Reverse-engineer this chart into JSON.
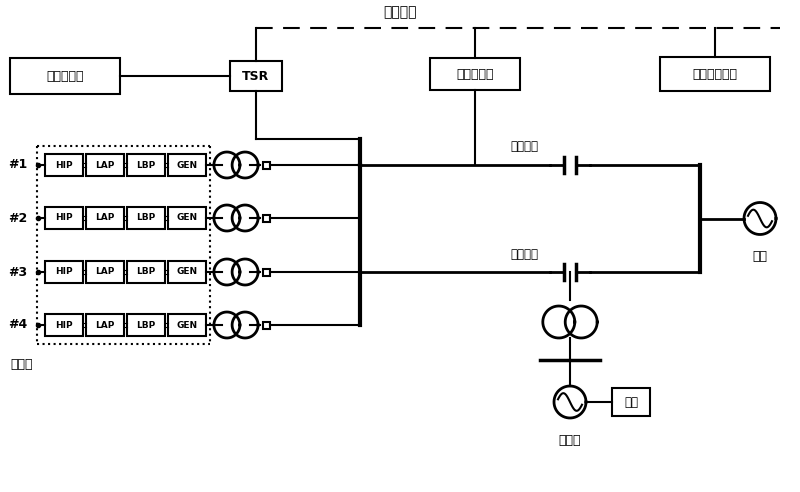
{
  "title": "通信通道",
  "bg_color": "#ffffff",
  "labels": {
    "plant_control": "电厂主控室",
    "TSR": "TSR",
    "bypass_controller": "旁路控制器",
    "grid_dispatch": "电网调度中心",
    "series_cap1": "串补电容",
    "series_cap2": "串补电容",
    "system": "系统",
    "power_plant_left": "发电厂",
    "power_plant_bot": "发电厂",
    "load": "负荷"
  },
  "unit_rows": [
    "#1",
    "#2",
    "#3",
    "#4"
  ],
  "unit_boxes": [
    "HIP",
    "LAP",
    "LBP",
    "GEN"
  ]
}
